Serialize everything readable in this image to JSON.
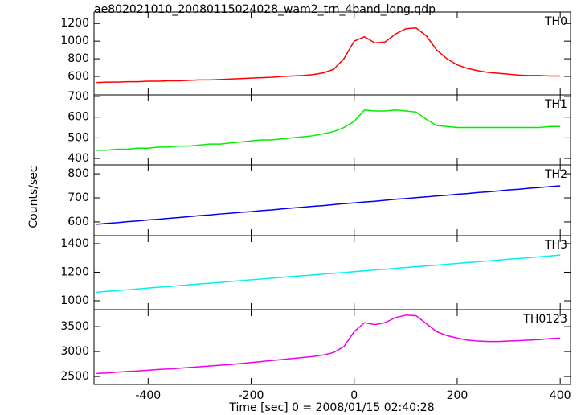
{
  "chart_data": {
    "type": "line",
    "title": "ae802021010_20080115024028_wam2_trn_4band_long.qdp",
    "xlabel": "Time [sec] 0 = 2008/01/15 02:40:28",
    "ylabel": "Counts/sec",
    "xlim": [
      -505,
      420
    ],
    "xticks": [
      -400,
      -200,
      0,
      200,
      400
    ],
    "x": [
      -500,
      -480,
      -460,
      -440,
      -420,
      -400,
      -380,
      -360,
      -340,
      -320,
      -300,
      -280,
      -260,
      -240,
      -220,
      -200,
      -180,
      -160,
      -140,
      -120,
      -100,
      -80,
      -60,
      -40,
      -20,
      0,
      20,
      40,
      60,
      80,
      100,
      120,
      140,
      160,
      180,
      200,
      220,
      240,
      260,
      280,
      300,
      320,
      340,
      360,
      380,
      400
    ],
    "series": [
      {
        "name": "TH0",
        "color": "#ff0000",
        "ylim": [
          390,
          1330
        ],
        "yticks": [
          600,
          800,
          1000,
          1200
        ],
        "values": [
          530,
          535,
          535,
          540,
          540,
          545,
          545,
          550,
          550,
          555,
          560,
          560,
          565,
          570,
          575,
          580,
          585,
          590,
          600,
          605,
          610,
          620,
          640,
          680,
          800,
          1000,
          1050,
          980,
          990,
          1080,
          1140,
          1150,
          1060,
          900,
          800,
          730,
          690,
          665,
          645,
          635,
          625,
          615,
          610,
          610,
          605,
          605
        ]
      },
      {
        "name": "TH1",
        "color": "#00ee00",
        "ylim": [
          369,
          708
        ],
        "yticks": [
          400,
          500,
          600,
          700
        ],
        "values": [
          440,
          440,
          445,
          445,
          450,
          450,
          455,
          455,
          460,
          460,
          465,
          470,
          470,
          475,
          480,
          485,
          490,
          490,
          495,
          500,
          505,
          510,
          520,
          530,
          550,
          580,
          635,
          630,
          630,
          635,
          630,
          625,
          590,
          560,
          555,
          550,
          550,
          550,
          550,
          550,
          550,
          550,
          550,
          550,
          555,
          555
        ]
      },
      {
        "name": "TH2",
        "color": "#0000ee",
        "ylim": [
          543,
          837
        ],
        "yticks": [
          600,
          700,
          800
        ],
        "values": [
          590,
          594,
          597,
          601,
          604,
          608,
          611,
          615,
          618,
          622,
          626,
          629,
          633,
          636,
          640,
          643,
          647,
          650,
          654,
          658,
          661,
          665,
          668,
          672,
          676,
          679,
          683,
          686,
          690,
          694,
          697,
          701,
          704,
          708,
          711,
          715,
          718,
          722,
          725,
          729,
          733,
          736,
          740,
          743,
          747,
          750
        ]
      },
      {
        "name": "TH3",
        "color": "#00f0f0",
        "ylim": [
          938,
          1456
        ],
        "yticks": [
          1000,
          1200,
          1400
        ],
        "values": [
          1060,
          1066,
          1072,
          1077,
          1083,
          1089,
          1095,
          1100,
          1106,
          1112,
          1118,
          1123,
          1129,
          1135,
          1141,
          1147,
          1152,
          1158,
          1164,
          1170,
          1175,
          1181,
          1187,
          1193,
          1198,
          1204,
          1210,
          1216,
          1221,
          1227,
          1233,
          1239,
          1244,
          1250,
          1256,
          1262,
          1268,
          1273,
          1279,
          1285,
          1291,
          1296,
          1302,
          1308,
          1314,
          1320
        ]
      },
      {
        "name": "TH0123",
        "color": "#ee00ee",
        "ylim": [
          2340,
          3840
        ],
        "yticks": [
          2500,
          3000,
          3500
        ],
        "values": [
          2560,
          2570,
          2585,
          2600,
          2610,
          2625,
          2640,
          2650,
          2665,
          2680,
          2695,
          2710,
          2725,
          2740,
          2760,
          2780,
          2800,
          2820,
          2840,
          2860,
          2880,
          2900,
          2930,
          2980,
          3100,
          3400,
          3580,
          3540,
          3580,
          3680,
          3730,
          3720,
          3560,
          3400,
          3320,
          3270,
          3230,
          3210,
          3200,
          3200,
          3210,
          3220,
          3230,
          3240,
          3260,
          3270
        ]
      }
    ]
  }
}
